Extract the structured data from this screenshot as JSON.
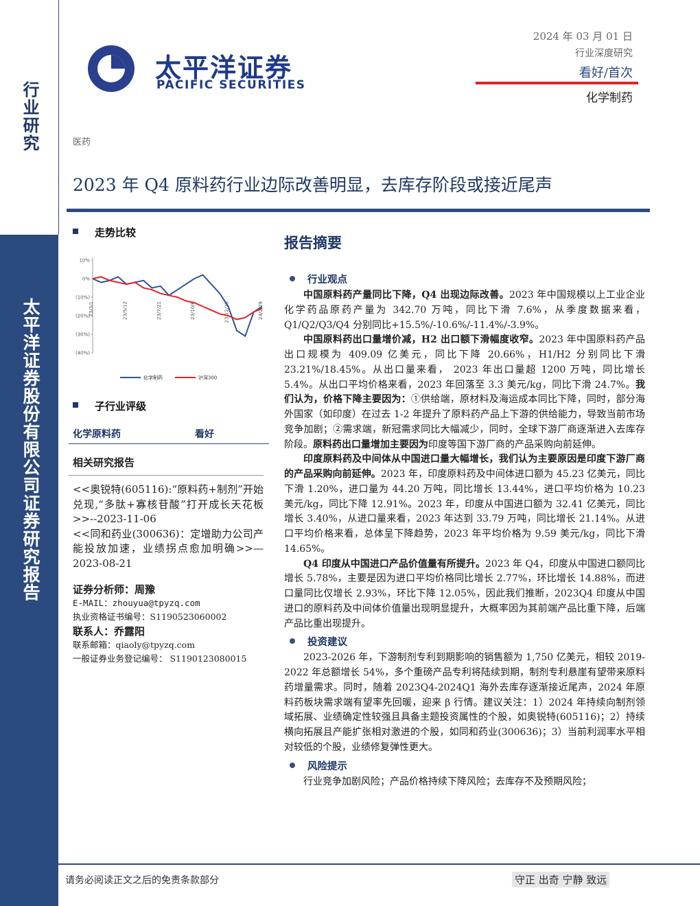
{
  "sidebar": {
    "top": "行业研究",
    "bottom": "太平洋证券股份有限公司证券研究报告"
  },
  "header": {
    "brand": "太平洋证券",
    "brand_en": "PACIFIC SECURITIES",
    "date": "2024 年 03 月 01 日",
    "report_type": "行业深度研究",
    "rating": "看好/首次",
    "sector": "化学制药"
  },
  "industry": "医药",
  "title": "2023 年 Q4 原料药行业边际改善明显，去库存阶段或接近尾声",
  "left": {
    "trend_heading": "走势比较",
    "chart_data": {
      "type": "line",
      "categories": [
        "23/3/1",
        null,
        null,
        null,
        "23/5/12",
        null,
        null,
        null,
        "23/7/21",
        null,
        null,
        null,
        "23/10/6",
        null,
        null,
        null,
        "23/12/28",
        null,
        null,
        null,
        "24/2/29"
      ],
      "series": [
        {
          "name": "化学制药",
          "color": "#2e5597",
          "values": [
            0,
            -2,
            -1,
            1,
            -3,
            -2,
            -1,
            -5,
            -4,
            -9,
            -6,
            -3,
            0,
            2,
            -3,
            -8,
            -15,
            -28,
            -31,
            -18,
            -15
          ]
        },
        {
          "name": "沪深300",
          "color": "#e0242b",
          "values": [
            0,
            1,
            -1,
            -2,
            -3,
            -2,
            -5,
            -6,
            -8,
            -9,
            -10,
            -12,
            -13,
            -15,
            -17,
            -19,
            -20,
            -22,
            -21,
            -18,
            -16
          ]
        }
      ],
      "ylim": [
        -40,
        10
      ],
      "yticks": [
        {
          "value": 10,
          "label": "10%"
        },
        {
          "value": 0,
          "label": "0%"
        },
        {
          "value": -10,
          "label": "(10%)"
        },
        {
          "value": -20,
          "label": "(20%)"
        },
        {
          "value": -30,
          "label": "(30%)"
        },
        {
          "value": -40,
          "label": "(40%)"
        }
      ]
    },
    "sub_rating_heading": "子行业评级",
    "sub_rating": [
      "化学原料药",
      "看好"
    ],
    "related_heading": "相关研究报告",
    "related": [
      "<<奥锐特(605116):“原料药+制剂”开始兑现,“多肽+寡核苷酸”打开成长天花板>>--2023-11-06",
      "<<同和药业(300636)：定增助力公司产能投放加速，业绩拐点愈加明确>>—2023-08-21"
    ],
    "analyst": "证券分析师：周豫",
    "email": "E-MAIL：zhouyua@tpyzq.com",
    "cert": "执业资格证书编号：S1190523060002",
    "contact": "联系人：乔露阳",
    "contact_email": "联系邮箱：qiaoly@tpyzq.com",
    "contact_cert": "一般证券业务登记编号： S1190123080015"
  },
  "right": {
    "heading": "报告摘要",
    "sections": [
      {
        "title": "行业观点",
        "paragraphs": [
          [
            {
              "text": "中国原料药产量同比下降，Q4 出现边际改善。",
              "bold": true
            },
            {
              "text": "2023 年中国规模以上工业企业化学药品原药产量为 342.70 万吨，同比下滑 7.6%，从季度数据来看， Q1/Q2/Q3/Q4 分别同比+15.5%/-10.6%/-11.4%/-3.9%。"
            }
          ],
          [
            {
              "text": "中国原料药出口量增价减，H2 出口额下滑幅度收窄。",
              "bold": true
            },
            {
              "text": "2023 年中国原料药产品出口规模为 409.09 亿美元，同比下降 20.66%，H1/H2 分别同比下滑 23.21%/18.45%。从出口量来看， 2023 年出口量超 1200 万吨，同比增长 5.4%。从出口平均价格来看，2023 年回落至 3.3 美元/kg，同比下滑 24.7%。"
            },
            {
              "text": "我们认为，价格下降主要因为：",
              "bold": true
            },
            {
              "text": "①供给端，原材料及海运成本同比下降，同时，部分海外国家（如印度）在过去 1-2 年提升了原料药产品上下游的供给能力，导致当前市场竞争加剧；②需求端，新冠需求同比大幅减少，同时，全球下游厂商逐渐进入去库存阶段。"
            },
            {
              "text": "原料药出口量增加主要因为",
              "bold": true
            },
            {
              "text": "印度等国下游厂商的产品采购向前延伸。"
            }
          ],
          [
            {
              "text": "印度原料药及中间体从中国进口量大幅增长，我们认为主要原因是印度下游厂商的产品采购向前延伸。",
              "bold": true
            },
            {
              "text": "2023 年，印度原料药及中间体进口额为 45.23 亿美元，同比下滑 1.20%，进口量为 44.20 万吨，同比增长 13.44%，进口平均价格为 10.23 美元/kg，同比下降 12.91%。2023 年，印度从中国进口额为 32.41 亿美元，同比增长 3.40%，从进口量来看，2023 年达到 33.79 万吨，同比增长 21.14%。从进口平均价格来看，总体呈下降趋势，2023 年平均价格为 9.59 美元/kg，同比下滑 14.65%。"
            }
          ],
          [
            {
              "text": "Q4 印度从中国进口产品价值量有所提升。",
              "bold": true
            },
            {
              "text": "2023 年 Q4，印度从中国进口额同比增长 5.78%，主要是因为进口平均价格同比增长 2.77%，环比增长 14.88%，而进口量同比仅增长 2.93%，环比下降 12.05%，因此我们推断，2023Q4 印度从中国进口的原料药及中间体价值量出现明显提升，大概率因为其前端产品比重下降，后端产品比重出现提升。"
            }
          ]
        ]
      },
      {
        "title": "投资建议",
        "paragraphs": [
          [
            {
              "text": "2023-2026 年，下游制剂专利到期影响的销售额为 1,750 亿美元，相较 2019-2022 年总额增长 54%，多个重磅产品专利将陆续到期，制剂专利悬崖有望带来原料药增量需求。同时，随着 2023Q4-2024Q1 海外去库存逐渐接近尾声，2024 年原料药板块需求端有望率先回暖，迎来 β 行情。建议关注：1）2024 年持续向制剂领域拓展、业绩确定性较强且具备主题投资属性的个股，如奥锐特(605116)；2）持续横向拓展且产能扩张相对激进的个股，如同和药业(300636)；3）当前利润率水平相对较低的个股，业绩修复弹性更大。"
            }
          ]
        ]
      },
      {
        "title": "风险提示",
        "paragraphs": [
          [
            {
              "text": "行业竞争加剧风险；产品价格持续下降风险；去库存不及预期风险；"
            }
          ]
        ]
      }
    ]
  },
  "footer": {
    "left": "请务必阅读正文之后的免责条款部分",
    "right": "守正 出奇 宁静 致远"
  }
}
